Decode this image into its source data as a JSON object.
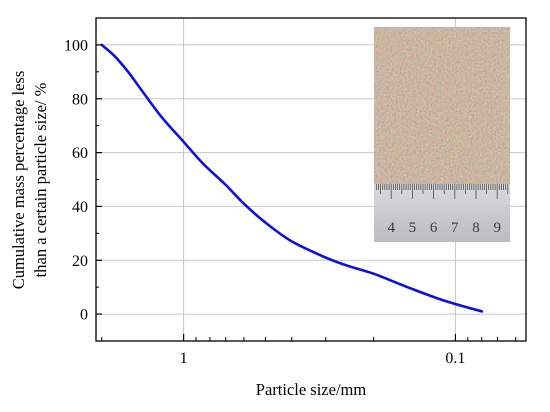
{
  "chart_data": {
    "type": "line",
    "title": "",
    "xlabel": "Particle size/mm",
    "ylabel_lines": [
      "Cumulative mass percentage less",
      "than a certain particle size/ %"
    ],
    "x_scale": "log",
    "x_reversed": true,
    "xlim": [
      2.1,
      0.055
    ],
    "ylim": [
      -10,
      110
    ],
    "x_tick_labels": [
      {
        "value": 1,
        "label": "1"
      },
      {
        "value": 0.1,
        "label": "0.1"
      }
    ],
    "y_tick_labels": [
      {
        "value": 0,
        "label": "0"
      },
      {
        "value": 20,
        "label": "20"
      },
      {
        "value": 40,
        "label": "40"
      },
      {
        "value": 60,
        "label": "60"
      },
      {
        "value": 80,
        "label": "80"
      },
      {
        "value": 100,
        "label": "100"
      }
    ],
    "grid": true,
    "legend": "none",
    "series": [
      {
        "color": "#1010dd",
        "points": [
          [
            2.0,
            100
          ],
          [
            1.8,
            96
          ],
          [
            1.6,
            90
          ],
          [
            1.4,
            82
          ],
          [
            1.2,
            73
          ],
          [
            1.0,
            64
          ],
          [
            0.85,
            56
          ],
          [
            0.7,
            48
          ],
          [
            0.6,
            41
          ],
          [
            0.5,
            34
          ],
          [
            0.4,
            27
          ],
          [
            0.3,
            21
          ],
          [
            0.25,
            18
          ],
          [
            0.2,
            15
          ],
          [
            0.15,
            10
          ],
          [
            0.11,
            5
          ],
          [
            0.08,
            1
          ]
        ]
      }
    ],
    "inset_photo": {
      "ruler_numbers": [
        "4",
        "5",
        "6",
        "7",
        "8",
        "9"
      ]
    }
  }
}
